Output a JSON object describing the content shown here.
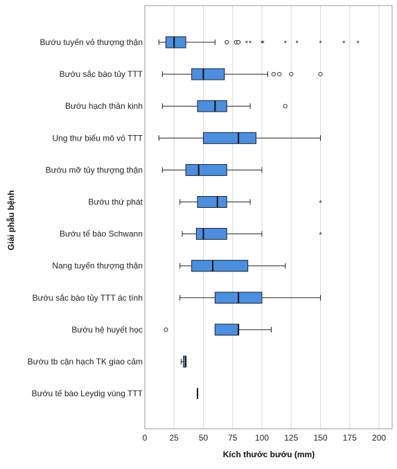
{
  "chart_data": {
    "type": "boxplot",
    "orientation": "horizontal",
    "title": "",
    "xlabel": "Kích thước bướu (mm)",
    "ylabel": "Giải phẫu bệnh",
    "xlim": [
      0,
      210
    ],
    "xticks": [
      0,
      25,
      50,
      75,
      100,
      125,
      150,
      175,
      200
    ],
    "grid": "vertical",
    "box_color": "#4a8fe0",
    "categories": [
      {
        "name": "Bướu tuyến vỏ thượng thận",
        "whisker_low": 12,
        "q1": 18,
        "median": 25,
        "q3": 35,
        "whisker_high": 60,
        "outliers": [
          70,
          78,
          80
        ],
        "extremes": [
          87,
          90,
          100,
          101,
          120,
          130,
          150,
          170,
          182
        ]
      },
      {
        "name": "Bướu sắc bào tủy TTT",
        "whisker_low": 15,
        "q1": 40,
        "median": 50,
        "q3": 68,
        "whisker_high": 105,
        "outliers": [
          110,
          115,
          125,
          150
        ],
        "extremes": []
      },
      {
        "name": "Bướu hạch thần kinh",
        "whisker_low": 15,
        "q1": 45,
        "median": 60,
        "q3": 70,
        "whisker_high": 90,
        "outliers": [
          120
        ],
        "extremes": []
      },
      {
        "name": "Ung thư biểu mô vỏ TTT",
        "whisker_low": 12,
        "q1": 50,
        "median": 80,
        "q3": 95,
        "whisker_high": 150,
        "outliers": [],
        "extremes": []
      },
      {
        "name": "Bướu mỡ tủy thượng thận",
        "whisker_low": 15,
        "q1": 35,
        "median": 46,
        "q3": 70,
        "whisker_high": 100,
        "outliers": [],
        "extremes": []
      },
      {
        "name": "Bướu thứ phát",
        "whisker_low": 30,
        "q1": 45,
        "median": 62,
        "q3": 70,
        "whisker_high": 90,
        "outliers": [],
        "extremes": [
          150
        ]
      },
      {
        "name": "Bướu tế bào Schwann",
        "whisker_low": 32,
        "q1": 44,
        "median": 50,
        "q3": 70,
        "whisker_high": 100,
        "outliers": [],
        "extremes": [
          150
        ]
      },
      {
        "name": "Nang tuyến thượng thận",
        "whisker_low": 30,
        "q1": 40,
        "median": 58,
        "q3": 88,
        "whisker_high": 120,
        "outliers": [],
        "extremes": []
      },
      {
        "name": "Bướu sắc bào tủy TTT ác tính",
        "whisker_low": 30,
        "q1": 60,
        "median": 80,
        "q3": 100,
        "whisker_high": 150,
        "outliers": [],
        "extremes": []
      },
      {
        "name": "Bướu hệ huyết học",
        "whisker_low": 60,
        "q1": 60,
        "median": 80,
        "q3": 80,
        "whisker_high": 108,
        "outliers": [
          18
        ],
        "extremes": []
      },
      {
        "name": "Bướu tb cận hạch TK giao cảm",
        "whisker_low": 31,
        "q1": 33,
        "median": 35,
        "q3": 35,
        "whisker_high": 35,
        "outliers": [],
        "extremes": []
      },
      {
        "name": "Bướu tế bào Leydig vùng TTT",
        "whisker_low": 45,
        "q1": 45,
        "median": 45,
        "q3": 45,
        "whisker_high": 45,
        "outliers": [],
        "extremes": []
      }
    ]
  }
}
